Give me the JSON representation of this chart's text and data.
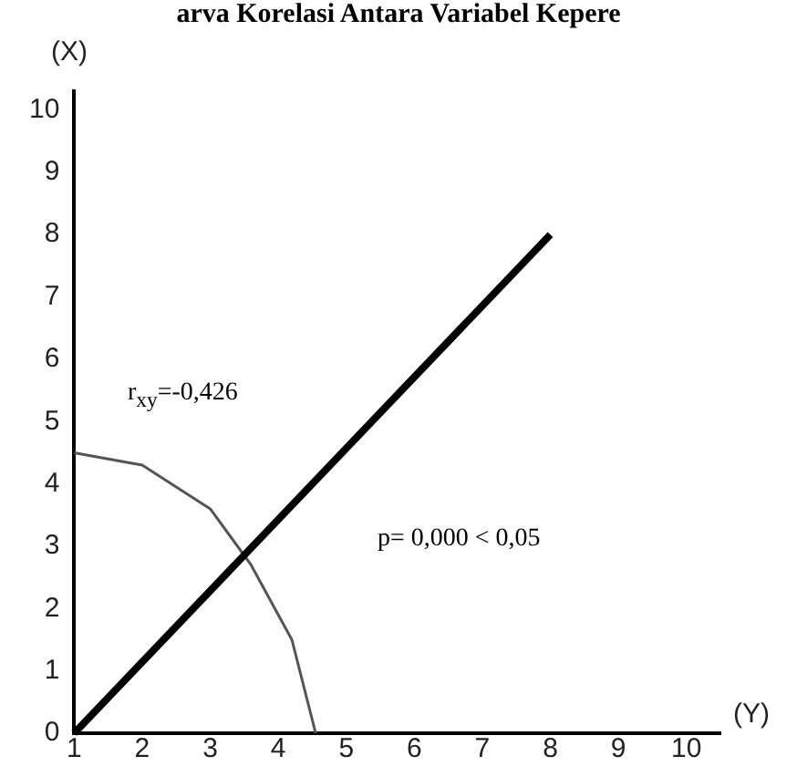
{
  "chart_data": {
    "type": "line",
    "title": "arva Korelasi Antara Variabel Kepere",
    "xlabel": "(Y)",
    "ylabel": "(X)",
    "series": [
      {
        "color": "#000000",
        "x": [
          1,
          8
        ],
        "values": [
          0,
          8
        ]
      },
      {
        "color": "#555555",
        "x": [
          1,
          2,
          3,
          3.6,
          4.2,
          4.55
        ],
        "values": [
          4.5,
          4.3,
          3.6,
          2.7,
          1.5,
          0
        ]
      }
    ],
    "xlim": [
      1,
      10.5
    ],
    "xticks": [
      1,
      2,
      3,
      4,
      5,
      6,
      7,
      8,
      9,
      10
    ],
    "ylim": [
      0,
      10.3
    ],
    "yticks": [
      0,
      1,
      2,
      3,
      4,
      5,
      6,
      7,
      8,
      9,
      10
    ],
    "grid": false,
    "legend": false,
    "marker": "none",
    "line_style": "solid",
    "annotations": [
      "r$_{xy}$=-0,426",
      "p= 0,000 < 0,05"
    ]
  }
}
